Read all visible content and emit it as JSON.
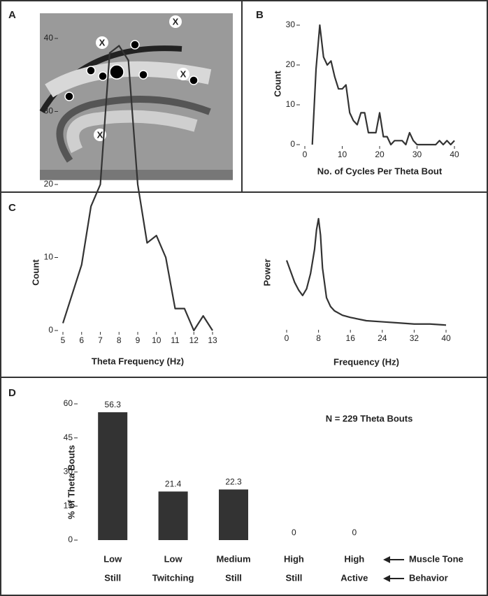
{
  "image_panel": {
    "panel": "A",
    "markers": [
      "X",
      "X",
      "X",
      "X"
    ]
  },
  "chart_data": [
    {
      "type": "line",
      "panel": "B",
      "x_label": "No. of Cycles Per Theta Bout",
      "y_label": "Count",
      "x": [
        2,
        3,
        4,
        5,
        6,
        7,
        8,
        9,
        10,
        11,
        12,
        13,
        14,
        15,
        16,
        17,
        18,
        19,
        20,
        21,
        22,
        23,
        24,
        25,
        26,
        27,
        28,
        29,
        30,
        31,
        32,
        33,
        34,
        35,
        36,
        37,
        38,
        39,
        40
      ],
      "values": [
        0,
        19,
        30,
        22,
        20,
        21,
        17,
        14,
        14,
        15,
        8,
        6,
        5,
        8,
        8,
        3,
        3,
        3,
        8,
        2,
        2,
        0,
        1,
        1,
        1,
        0,
        3,
        1,
        0,
        0,
        0,
        0,
        0,
        0,
        1,
        0,
        1,
        0,
        1
      ],
      "color": "#333333",
      "xlim": [
        0,
        40
      ],
      "ylim": [
        0,
        30
      ],
      "xticks": [
        0,
        10,
        20,
        30,
        40
      ],
      "yticks": [
        0,
        10,
        20,
        30
      ]
    },
    {
      "type": "line",
      "panel": "C",
      "x_label": "Theta Frequency (Hz)",
      "y_label": "Count",
      "x": [
        5,
        6,
        6.5,
        7,
        7.5,
        8,
        8.5,
        9,
        9.5,
        10,
        10.5,
        11,
        11.5,
        12,
        12.5,
        13
      ],
      "values": [
        1,
        9,
        17,
        20,
        38,
        39,
        37,
        20,
        12,
        13,
        10,
        3,
        3,
        0,
        2,
        0
      ],
      "color": "#333333",
      "xlim": [
        5,
        13
      ],
      "ylim": [
        0,
        40
      ],
      "xticks": [
        5,
        6,
        7,
        8,
        9,
        10,
        11,
        12,
        13
      ],
      "yticks": [
        0,
        10,
        20,
        30,
        40
      ]
    },
    {
      "type": "line",
      "x_label": "Frequency (Hz)",
      "y_label": "Power",
      "x": [
        0,
        1,
        2,
        3,
        4,
        5,
        6,
        7,
        7.5,
        8,
        8.5,
        9,
        10,
        11,
        12,
        14,
        16,
        20,
        24,
        28,
        32,
        36,
        40
      ],
      "values": [
        0.62,
        0.52,
        0.42,
        0.35,
        0.3,
        0.36,
        0.5,
        0.72,
        0.9,
        1.0,
        0.85,
        0.55,
        0.28,
        0.2,
        0.16,
        0.12,
        0.1,
        0.07,
        0.06,
        0.05,
        0.04,
        0.04,
        0.03
      ],
      "color": "#333333",
      "xlim": [
        0,
        40
      ],
      "ylim": [
        0,
        1
      ],
      "xticks": [
        0,
        8,
        16,
        24,
        32,
        40
      ]
    },
    {
      "type": "bar",
      "panel": "D",
      "y_label": "% of Theta Bouts",
      "annotation": "N = 229 Theta Bouts",
      "category_rows": [
        {
          "name": "Muscle Tone",
          "labels": [
            "Low",
            "Low",
            "Medium",
            "High",
            "High"
          ]
        },
        {
          "name": "Behavior",
          "labels": [
            "Still",
            "Twitching",
            "Still",
            "Still",
            "Active"
          ]
        }
      ],
      "values": [
        56.3,
        21.4,
        22.3,
        0,
        0
      ],
      "color": "#333333",
      "ylim": [
        0,
        60
      ],
      "yticks": [
        0,
        15,
        30,
        45,
        60
      ]
    }
  ]
}
